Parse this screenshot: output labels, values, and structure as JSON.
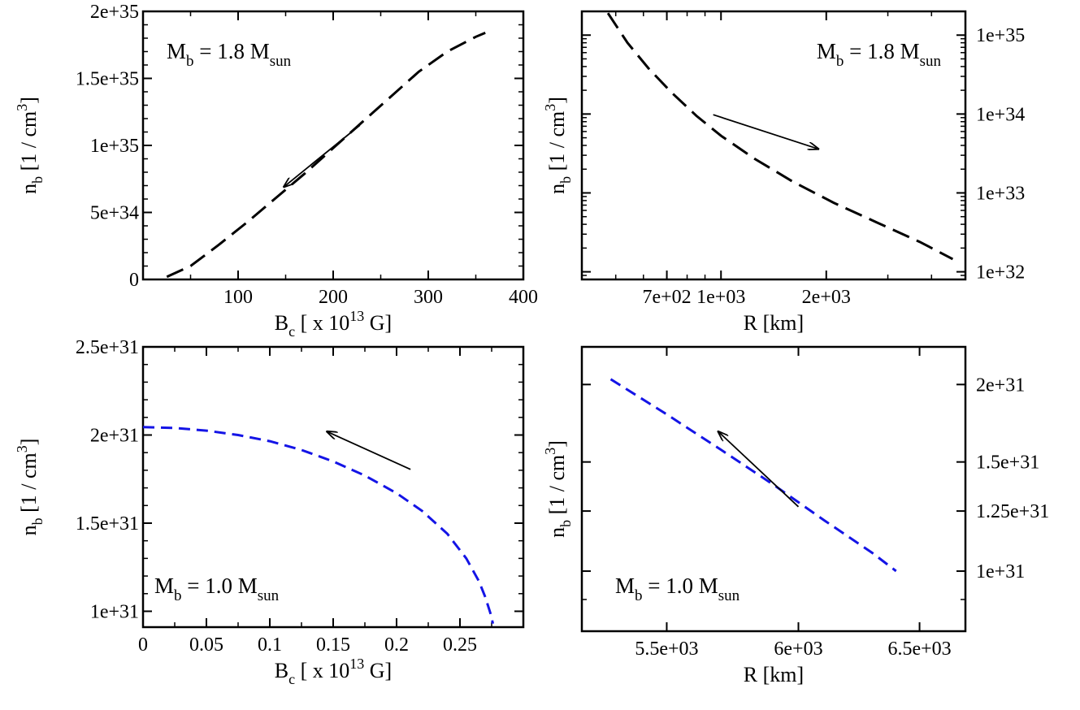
{
  "chart_data": [
    {
      "type": "line",
      "title": "",
      "annotation": {
        "label": "M",
        "sub1": "b",
        "mid": " = 1.8 M",
        "sub2": "sun"
      },
      "xlabel": {
        "main": "B",
        "sub": "c",
        "pre": " [ x 10",
        "sup": "13",
        "post": " G]"
      },
      "ylabel": {
        "main": "n",
        "sub": "b",
        "pre": " [1 / cm",
        "sup": "3",
        "post": "]"
      },
      "xscale": "linear",
      "yscale": "linear",
      "xlim": [
        0,
        400
      ],
      "ylim": [
        0,
        2e+35
      ],
      "xticks": [
        {
          "v": 100,
          "label": "100"
        },
        {
          "v": 200,
          "label": "200"
        },
        {
          "v": 300,
          "label": "300"
        },
        {
          "v": 400,
          "label": "400"
        }
      ],
      "yticks": [
        {
          "v": 0,
          "label": "0"
        },
        {
          "v": 5e+34,
          "label": "5e+34"
        },
        {
          "v": 1e+35,
          "label": "1e+35"
        },
        {
          "v": 1.5e+35,
          "label": "1.5e+35"
        },
        {
          "v": 2e+35,
          "label": "2e+35"
        }
      ],
      "ytick_side": "left",
      "series": [
        {
          "name": "M_b = 1.8 M_sun",
          "color": "#000000",
          "x": [
            25,
            50,
            80,
            110,
            140,
            170,
            200,
            230,
            260,
            290,
            320,
            350,
            360
          ],
          "y": [
            2e+33,
            1e+34,
            2.6e+34,
            4.3e+34,
            6.1e+34,
            7.9e+34,
            9.8e+34,
            1.17e+35,
            1.36e+35,
            1.55e+35,
            1.7e+35,
            1.81e+35,
            1.84e+35
          ]
        }
      ],
      "arrow": {
        "from": [
          228,
          1.15e+35
        ],
        "to": [
          148,
          6.9e+34
        ]
      }
    },
    {
      "type": "line",
      "title": "",
      "annotation": {
        "label": "M",
        "sub1": "b",
        "mid": " = 1.8 M",
        "sub2": "sun"
      },
      "xlabel": {
        "main": "R [km]",
        "sub": "",
        "pre": "",
        "sup": "",
        "post": ""
      },
      "ylabel": {
        "main": "n",
        "sub": "b",
        "pre": " [1 / cm",
        "sup": "3",
        "post": "]"
      },
      "xscale": "log",
      "yscale": "log",
      "xlim": [
        400,
        5000
      ],
      "ylim": [
        8e+31,
        2e+35
      ],
      "xticks": [
        {
          "v": 700,
          "label": "7e+02"
        },
        {
          "v": 1000,
          "label": "1e+03"
        },
        {
          "v": 2000,
          "label": "2e+03"
        }
      ],
      "yticks": [
        {
          "v": 1e+32,
          "label": "1e+32"
        },
        {
          "v": 1e+33,
          "label": "1e+33"
        },
        {
          "v": 1e+34,
          "label": "1e+34"
        },
        {
          "v": 1e+35,
          "label": "1e+35"
        }
      ],
      "ytick_side": "right",
      "series": [
        {
          "name": "M_b = 1.8 M_sun",
          "color": "#000000",
          "x": [
            475,
            540,
            620,
            720,
            850,
            1000,
            1250,
            1600,
            2100,
            2800,
            3700,
            4600
          ],
          "y": [
            1.9e+35,
            8e+34,
            3.8e+34,
            1.9e+34,
            9.5e+33,
            5.3e+33,
            2.7e+33,
            1.4e+33,
            7.5e+32,
            4.2e+32,
            2.4e+32,
            1.45e+32
          ]
        }
      ],
      "arrow": {
        "from": [
          950,
          9.8e+33
        ],
        "to": [
          1900,
          3.6e+33
        ]
      }
    },
    {
      "type": "line",
      "title": "",
      "annotation": {
        "label": "M",
        "sub1": "b",
        "mid": " = 1.0 M",
        "sub2": "sun"
      },
      "xlabel": {
        "main": "B",
        "sub": "c",
        "pre": " [ x 10",
        "sup": "13",
        "post": " G]"
      },
      "ylabel": {
        "main": "n",
        "sub": "b",
        "pre": " [1 / cm",
        "sup": "3",
        "post": "]"
      },
      "xscale": "linear",
      "yscale": "linear",
      "xlim": [
        0,
        0.3
      ],
      "ylim": [
        9.1e+30,
        2.5e+31
      ],
      "xticks": [
        {
          "v": 0,
          "label": "0"
        },
        {
          "v": 0.05,
          "label": "0.05"
        },
        {
          "v": 0.1,
          "label": "0.1"
        },
        {
          "v": 0.15,
          "label": "0.15"
        },
        {
          "v": 0.2,
          "label": "0.2"
        },
        {
          "v": 0.25,
          "label": "0.25"
        }
      ],
      "yticks": [
        {
          "v": 1e+31,
          "label": "1e+31"
        },
        {
          "v": 1.5e+31,
          "label": "1.5e+31"
        },
        {
          "v": 2e+31,
          "label": "2e+31"
        },
        {
          "v": 2.5e+31,
          "label": "2.5e+31"
        }
      ],
      "ytick_side": "left",
      "series": [
        {
          "name": "M_b = 1.0 M_sun",
          "color": "#1414e6",
          "x": [
            0,
            0.025,
            0.05,
            0.075,
            0.1,
            0.125,
            0.15,
            0.175,
            0.2,
            0.22,
            0.24,
            0.255,
            0.265,
            0.27,
            0.274,
            0.276
          ],
          "y": [
            2.045e+31,
            2.04e+31,
            2.025e+31,
            2e+31,
            1.965e+31,
            1.915e+31,
            1.85e+31,
            1.77e+31,
            1.67e+31,
            1.57e+31,
            1.44e+31,
            1.3e+31,
            1.17e+31,
            1.08e+31,
            9.9e+30,
            9.3e+30
          ]
        }
      ],
      "arrow": {
        "from": [
          0.211,
          1.805e+31
        ],
        "to": [
          0.145,
          2.02e+31
        ]
      }
    },
    {
      "type": "line",
      "title": "",
      "annotation": {
        "label": "M",
        "sub1": "b",
        "mid": " = 1.0 M",
        "sub2": "sun"
      },
      "xlabel": {
        "main": "R [km]",
        "sub": "",
        "pre": "",
        "sup": "",
        "post": ""
      },
      "ylabel": {
        "main": "n",
        "sub": "b",
        "pre": " [1 / cm",
        "sup": "3",
        "post": "]"
      },
      "xscale": "log",
      "yscale": "log",
      "xlim": [
        5200,
        6700
      ],
      "ylim": [
        8e+30,
        2.3e+31
      ],
      "xticks": [
        {
          "v": 5500,
          "label": "5.5e+03"
        },
        {
          "v": 6000,
          "label": "6e+03"
        },
        {
          "v": 6500,
          "label": "6.5e+03"
        }
      ],
      "yticks": [
        {
          "v": 1e+31,
          "label": "1e+31"
        },
        {
          "v": 1.25e+31,
          "label": "1.25e+31"
        },
        {
          "v": 1.5e+31,
          "label": "1.5e+31"
        },
        {
          "v": 2e+31,
          "label": "2e+31"
        }
      ],
      "ytick_side": "right",
      "series": [
        {
          "name": "M_b = 1.0 M_sun",
          "color": "#1414e6",
          "x": [
            5300,
            5500,
            5700,
            5900,
            6100,
            6300,
            6400
          ],
          "y": [
            2.04e+31,
            1.79e+31,
            1.57e+31,
            1.38e+31,
            1.21e+31,
            1.07e+31,
            1e+31
          ]
        }
      ],
      "arrow": {
        "from": [
          6000,
          1.27e+31
        ],
        "to": [
          5690,
          1.68e+31
        ]
      }
    }
  ]
}
